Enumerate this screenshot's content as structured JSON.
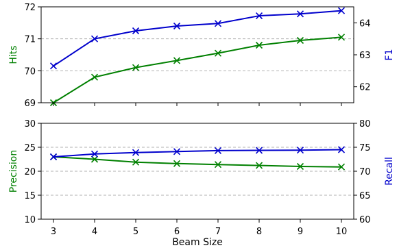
{
  "chart_data": [
    {
      "type": "line",
      "x": [
        3,
        4,
        5,
        6,
        7,
        8,
        9,
        10
      ],
      "xlabel": "",
      "series": [
        {
          "name": "",
          "axis": "left",
          "color": "#008000",
          "values": [
            69.0,
            69.8,
            70.1,
            70.32,
            70.55,
            70.8,
            70.95,
            71.05
          ]
        },
        {
          "name": "",
          "axis": "right",
          "color": "#0000cc",
          "values": [
            62.65,
            63.5,
            63.75,
            63.9,
            63.98,
            64.22,
            64.28,
            64.38
          ]
        }
      ],
      "ylabel_left": "Hits",
      "ylabel_right": "F1",
      "ylim_left": [
        69,
        72
      ],
      "ylim_right": [
        61.5,
        64.5
      ],
      "yticks_left": [
        69,
        70,
        71,
        72
      ],
      "yticks_right": [
        62,
        63,
        64
      ],
      "grid": "horizontal dashed",
      "marker": "x"
    },
    {
      "type": "line",
      "x": [
        3,
        4,
        5,
        6,
        7,
        8,
        9,
        10
      ],
      "xlabel": "Beam Size",
      "series": [
        {
          "name": "",
          "axis": "left",
          "color": "#008000",
          "values": [
            23.0,
            22.5,
            21.9,
            21.6,
            21.4,
            21.2,
            21.0,
            20.9
          ]
        },
        {
          "name": "",
          "axis": "right",
          "color": "#0000cc",
          "values": [
            73.0,
            73.6,
            73.9,
            74.1,
            74.3,
            74.35,
            74.4,
            74.5
          ]
        }
      ],
      "ylabel_left": "Precision",
      "ylabel_right": "Recall",
      "ylim_left": [
        10,
        30
      ],
      "ylim_right": [
        60,
        80
      ],
      "yticks_left": [
        10,
        15,
        20,
        25,
        30
      ],
      "yticks_right": [
        60,
        65,
        70,
        75,
        80
      ],
      "grid": "horizontal dashed",
      "marker": "x"
    }
  ]
}
